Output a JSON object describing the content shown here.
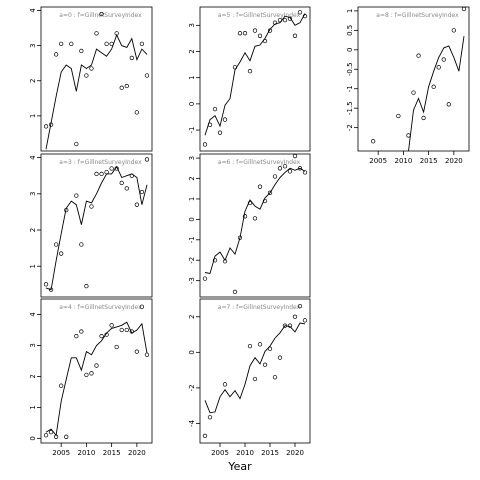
{
  "figure": {
    "xlabel": "Year"
  },
  "chart_data": [
    {
      "type": "scatter",
      "panel_label": "a=0  :  f=GillnetSurveyIndex",
      "xlim": [
        2001,
        2023
      ],
      "ylim": [
        0.0,
        4.1
      ],
      "yticks": [
        1,
        2,
        3,
        4
      ],
      "xticks": [],
      "xtick_labels": false,
      "observed": {
        "x": [
          2002,
          2003,
          2004,
          2005,
          2007,
          2008,
          2009,
          2010,
          2011,
          2012,
          2013,
          2014,
          2015,
          2016,
          2017,
          2018,
          2019,
          2020,
          2021,
          2022
        ],
        "y": [
          0.7,
          0.75,
          2.75,
          3.05,
          3.05,
          0.2,
          2.85,
          2.15,
          2.35,
          3.35,
          3.9,
          3.05,
          3.05,
          3.35,
          1.8,
          1.85,
          2.65,
          1.1,
          3.05,
          2.15
        ]
      },
      "fitted": {
        "x": [
          2002,
          2004,
          2005,
          2006,
          2007,
          2008,
          2009,
          2010,
          2011,
          2012,
          2013,
          2014,
          2015,
          2016,
          2017,
          2018,
          2019,
          2020,
          2021,
          2022
        ],
        "y": [
          0.05,
          1.55,
          2.25,
          2.45,
          2.35,
          1.7,
          2.45,
          2.35,
          2.45,
          2.9,
          2.8,
          2.7,
          2.9,
          3.3,
          3.0,
          2.95,
          3.2,
          2.6,
          2.9,
          2.75
        ]
      }
    },
    {
      "type": "scatter",
      "panel_label": "a=5  :  f=GillnetSurveyIndex",
      "xlim": [
        2001,
        2023
      ],
      "ylim": [
        -1.8,
        3.7
      ],
      "yticks": [
        -1,
        0,
        1,
        2,
        3
      ],
      "xticks": [],
      "xtick_labels": false,
      "observed": {
        "x": [
          2002,
          2003,
          2004,
          2005,
          2006,
          2008,
          2009,
          2010,
          2011,
          2012,
          2013,
          2014,
          2015,
          2016,
          2017,
          2018,
          2019,
          2020,
          2021,
          2022
        ],
        "y": [
          -1.55,
          -0.8,
          -0.2,
          -1.1,
          -0.6,
          1.4,
          2.7,
          2.7,
          1.25,
          2.8,
          2.6,
          2.4,
          2.8,
          3.1,
          3.2,
          3.2,
          3.25,
          2.6,
          3.5,
          3.35
        ]
      },
      "fitted": {
        "x": [
          2002,
          2003,
          2004,
          2005,
          2006,
          2007,
          2008,
          2009,
          2010,
          2011,
          2012,
          2013,
          2014,
          2015,
          2016,
          2017,
          2018,
          2019,
          2020,
          2021,
          2022
        ],
        "y": [
          -1.2,
          -0.6,
          -0.45,
          -0.85,
          -0.05,
          0.2,
          1.3,
          1.6,
          1.95,
          1.65,
          2.2,
          2.25,
          2.5,
          2.85,
          3.05,
          3.1,
          3.35,
          3.3,
          3.0,
          3.1,
          3.45
        ]
      }
    },
    {
      "type": "scatter",
      "panel_label": "a=8  :  f=GillnetSurveyIndex",
      "xlim": [
        2001,
        2023
      ],
      "ylim": [
        -2.6,
        1.1
      ],
      "yticks": [
        -2.0,
        -1.5,
        -1.0,
        -0.5,
        0.0,
        0.5,
        1.0
      ],
      "xticks": [
        2005,
        2010,
        2015,
        2020
      ],
      "xtick_labels": true,
      "observed": {
        "x": [
          2004,
          2009,
          2011,
          2012,
          2013,
          2014,
          2016,
          2017,
          2018,
          2019,
          2020,
          2022
        ],
        "y": [
          -2.35,
          -1.7,
          -2.2,
          -1.1,
          -0.15,
          -1.75,
          -0.95,
          -0.45,
          -0.25,
          -1.4,
          0.5,
          1.05
        ]
      },
      "fitted": {
        "x": [
          2011,
          2012,
          2013,
          2014,
          2015,
          2016,
          2017,
          2018,
          2019,
          2020,
          2021,
          2022
        ],
        "y": [
          -2.6,
          -1.55,
          -1.25,
          -1.6,
          -0.95,
          -0.55,
          -0.2,
          0.05,
          0.1,
          -0.2,
          -0.55,
          0.35
        ]
      }
    },
    {
      "type": "scatter",
      "panel_label": "a=3  :  f=GillnetSurveyIndex",
      "xlim": [
        2001,
        2023
      ],
      "ylim": [
        0.15,
        4.1
      ],
      "yticks": [
        1,
        2,
        3,
        4
      ],
      "xticks": [],
      "xtick_labels": false,
      "observed": {
        "x": [
          2002,
          2003,
          2004,
          2005,
          2006,
          2008,
          2009,
          2010,
          2011,
          2012,
          2013,
          2014,
          2015,
          2016,
          2017,
          2018,
          2019,
          2020,
          2021,
          2022
        ],
        "y": [
          0.5,
          0.35,
          1.6,
          1.35,
          2.55,
          2.95,
          1.6,
          0.45,
          2.65,
          3.55,
          3.55,
          3.6,
          3.7,
          3.7,
          3.3,
          3.15,
          3.5,
          2.7,
          3.05,
          3.95
        ]
      },
      "fitted": {
        "x": [
          2002,
          2003,
          2004,
          2005,
          2006,
          2007,
          2008,
          2009,
          2010,
          2011,
          2012,
          2013,
          2014,
          2015,
          2016,
          2017,
          2018,
          2019,
          2020,
          2021,
          2022
        ],
        "y": [
          0.4,
          0.35,
          1.15,
          1.9,
          2.6,
          2.8,
          2.7,
          2.15,
          2.8,
          2.75,
          3.0,
          3.3,
          3.55,
          3.55,
          3.75,
          3.45,
          3.5,
          3.55,
          3.45,
          2.7,
          3.25
        ]
      }
    },
    {
      "type": "scatter",
      "panel_label": "a=6  :  f=GillnetSurveyIndex",
      "xlim": [
        2001,
        2023
      ],
      "ylim": [
        -3.8,
        3.2
      ],
      "yticks": [
        -3,
        -2,
        -1,
        0,
        1,
        2,
        3
      ],
      "xticks": [],
      "xtick_labels": false,
      "observed": {
        "x": [
          2002,
          2004,
          2006,
          2008,
          2009,
          2010,
          2011,
          2012,
          2013,
          2014,
          2015,
          2016,
          2017,
          2018,
          2019,
          2020,
          2021,
          2022
        ],
        "y": [
          -2.9,
          -2.0,
          -2.05,
          -3.55,
          -0.9,
          0.15,
          0.8,
          0.05,
          1.6,
          0.9,
          1.3,
          2.1,
          2.5,
          2.6,
          2.35,
          3.1,
          2.5,
          2.3
        ]
      },
      "fitted": {
        "x": [
          2002,
          2003,
          2004,
          2005,
          2006,
          2007,
          2008,
          2009,
          2010,
          2011,
          2012,
          2013,
          2014,
          2015,
          2016,
          2017,
          2018,
          2019,
          2020,
          2021,
          2022
        ],
        "y": [
          -2.6,
          -2.65,
          -1.8,
          -1.6,
          -2.0,
          -1.4,
          -1.7,
          -0.9,
          0.4,
          0.95,
          0.65,
          0.5,
          1.05,
          1.3,
          1.7,
          2.05,
          2.3,
          2.5,
          2.4,
          2.5,
          2.35
        ]
      }
    },
    {
      "type": "scatter",
      "panel_label": "a=4  :  f=GillnetSurveyIndex",
      "xlim": [
        2001,
        2023
      ],
      "ylim": [
        -0.15,
        4.5
      ],
      "yticks": [
        0,
        1,
        2,
        3,
        4
      ],
      "xticks": [
        2005,
        2010,
        2015,
        2020
      ],
      "xtick_labels": true,
      "observed": {
        "x": [
          2002,
          2003,
          2004,
          2005,
          2006,
          2008,
          2009,
          2010,
          2011,
          2012,
          2013,
          2014,
          2015,
          2016,
          2017,
          2018,
          2019,
          2020,
          2021,
          2022
        ],
        "y": [
          0.1,
          0.2,
          0.05,
          1.7,
          0.05,
          3.3,
          3.45,
          2.05,
          2.1,
          2.35,
          3.3,
          3.35,
          3.65,
          2.95,
          3.5,
          3.5,
          3.45,
          2.8,
          4.25,
          2.7
        ]
      },
      "fitted": {
        "x": [
          2002,
          2003,
          2004,
          2005,
          2006,
          2007,
          2008,
          2009,
          2010,
          2011,
          2012,
          2013,
          2014,
          2015,
          2016,
          2017,
          2018,
          2019,
          2020,
          2021,
          2022
        ],
        "y": [
          0.2,
          0.3,
          0.1,
          1.2,
          1.9,
          2.6,
          2.6,
          2.2,
          2.8,
          2.7,
          3.0,
          3.15,
          3.4,
          3.55,
          3.6,
          3.65,
          3.75,
          3.4,
          3.5,
          3.7,
          2.75
        ]
      }
    },
    {
      "type": "scatter",
      "panel_label": "a=7  :  f=GillnetSurveyIndex",
      "xlim": [
        2001,
        2023
      ],
      "ylim": [
        -5.1,
        3.0
      ],
      "yticks": [
        -4,
        -2,
        0,
        2
      ],
      "xticks": [
        2005,
        2010,
        2015,
        2020
      ],
      "xtick_labels": true,
      "observed": {
        "x": [
          2002,
          2003,
          2006,
          2011,
          2012,
          2013,
          2014,
          2015,
          2016,
          2017,
          2018,
          2019,
          2020,
          2021,
          2022
        ],
        "y": [
          -4.7,
          -3.65,
          -1.8,
          0.35,
          -1.5,
          0.45,
          -0.7,
          0.2,
          -1.4,
          -0.3,
          1.5,
          1.5,
          2.0,
          2.6,
          1.8
        ]
      },
      "fitted": {
        "x": [
          2002,
          2003,
          2004,
          2005,
          2006,
          2007,
          2008,
          2009,
          2010,
          2011,
          2012,
          2013,
          2014,
          2015,
          2016,
          2017,
          2018,
          2019,
          2020,
          2021,
          2022
        ],
        "y": [
          -2.7,
          -3.4,
          -3.35,
          -2.5,
          -2.1,
          -2.5,
          -2.15,
          -2.6,
          -1.8,
          -0.75,
          -0.3,
          -0.65,
          0.05,
          0.35,
          0.8,
          1.1,
          1.5,
          1.45,
          1.15,
          1.65,
          1.6
        ]
      }
    }
  ]
}
